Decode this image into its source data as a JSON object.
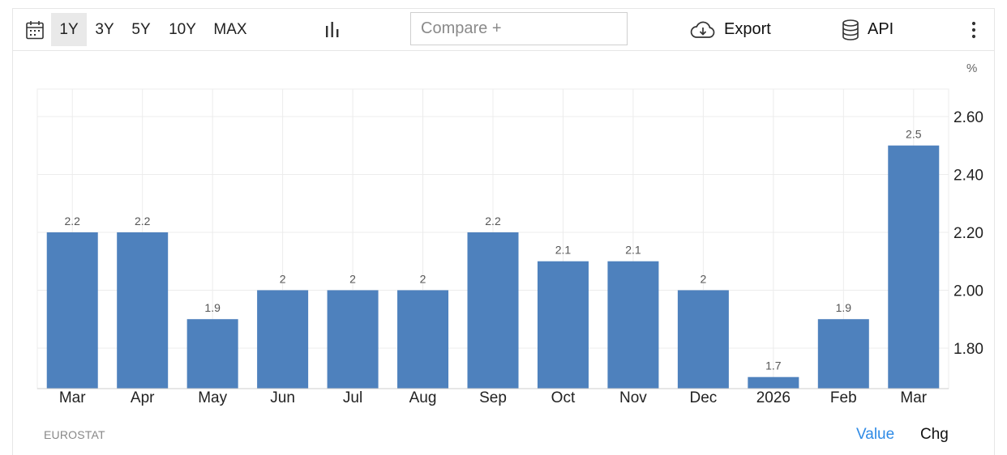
{
  "toolbar": {
    "ranges": [
      "1Y",
      "3Y",
      "5Y",
      "10Y",
      "MAX"
    ],
    "active_range": "1Y",
    "compare_placeholder": "Compare +",
    "export_label": "Export",
    "api_label": "API",
    "icons": [
      "calendar-icon",
      "bar-chart-icon",
      "cloud-download-icon",
      "database-icon",
      "more-vertical-icon"
    ]
  },
  "chart_data": {
    "type": "bar",
    "categories": [
      "Mar",
      "Apr",
      "May",
      "Jun",
      "Jul",
      "Aug",
      "Sep",
      "Oct",
      "Nov",
      "Dec",
      "2026",
      "Feb",
      "Mar"
    ],
    "values": [
      2.2,
      2.2,
      1.9,
      2,
      2,
      2,
      2.2,
      2.1,
      2.1,
      2,
      1.7,
      1.9,
      2.5
    ],
    "data_labels": [
      "2.2",
      "2.2",
      "1.9",
      "2",
      "2",
      "2",
      "2.2",
      "2.1",
      "2.1",
      "2",
      "1.7",
      "1.9",
      "2.5"
    ],
    "yticks": [
      "2.60",
      "2.40",
      "2.20",
      "2.00",
      "1.80"
    ],
    "ylim": [
      1.66,
      2.695
    ],
    "unit": "%",
    "y_axis_position": "right",
    "grid": true,
    "bar_color": "#4e81bd"
  },
  "footer": {
    "source": "EUROSTAT",
    "tab_value": "Value",
    "tab_chg": "Chg",
    "active_tab_color": "#2f8be6"
  }
}
